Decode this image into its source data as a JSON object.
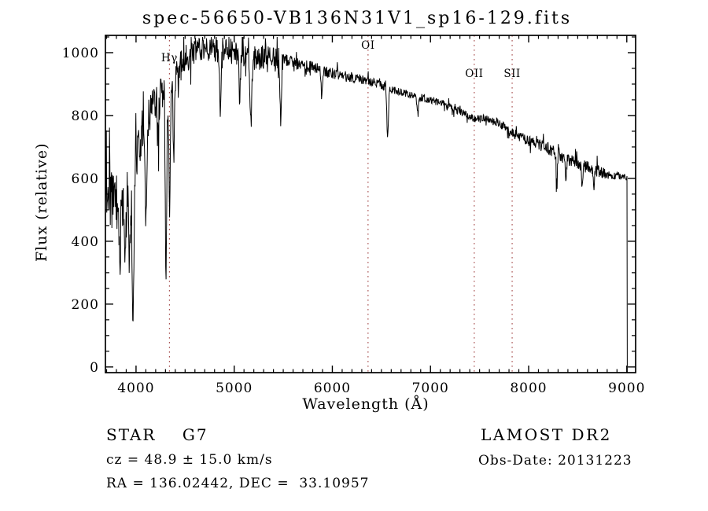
{
  "title": "spec-56650-VB136N31V1_sp16-129.fits",
  "annotations": {
    "class_line": "STAR    G7",
    "survey": "LAMOST DR2",
    "cz_line": "cz = 48.9 ± 15.0 km/s",
    "obs_date_line": "Obs-Date: 20131223",
    "ra_dec_line": "RA = 136.02442, DEC =  33.10957"
  },
  "colors": {
    "background": "#ffffff",
    "spectrum_line": "#000000",
    "axis": "#000000",
    "text": "#000000",
    "marker_line": "#993333"
  },
  "chart_data": {
    "type": "line",
    "title": "spec-56650-VB136N31V1_sp16-129.fits",
    "xlabel": "Wavelength (Å)",
    "ylabel": "Flux (relative)",
    "xlim": [
      3688,
      9090
    ],
    "ylim": [
      -18,
      1055
    ],
    "grid": false,
    "x_major_ticks": [
      4000,
      5000,
      6000,
      7000,
      8000,
      9000
    ],
    "x_tick_labels": [
      "4000",
      "5000",
      "6000",
      "7000",
      "8000",
      "9000"
    ],
    "x_minor_step": 100,
    "y_major_ticks": [
      0,
      200,
      400,
      600,
      800,
      1000
    ],
    "y_tick_labels": [
      "0",
      "200",
      "400",
      "600",
      "800",
      "1000"
    ],
    "y_minor_step": 50,
    "line_markers": [
      {
        "label": "Hγ",
        "wavelength": 4340,
        "label_y": 78
      },
      {
        "label": "OI",
        "wavelength": 6364,
        "label_y": 62
      },
      {
        "label": "OII",
        "wavelength": 7446,
        "label_y": 98
      },
      {
        "label": "SII",
        "wavelength": 7832,
        "label_y": 98
      }
    ],
    "series": [
      {
        "name": "spectrum",
        "x_start": 3690,
        "x_end": 9005,
        "step": 4,
        "seed": 136129,
        "clip_max": 1050,
        "end_drop_to": -18,
        "continuum": [
          [
            3690,
            545
          ],
          [
            3780,
            525
          ],
          [
            3850,
            530
          ],
          [
            3920,
            575
          ],
          [
            3960,
            615
          ],
          [
            4000,
            660
          ],
          [
            4060,
            735
          ],
          [
            4120,
            795
          ],
          [
            4200,
            845
          ],
          [
            4280,
            885
          ],
          [
            4360,
            915
          ],
          [
            4440,
            950
          ],
          [
            4520,
            985
          ],
          [
            4620,
            1005
          ],
          [
            4750,
            1012
          ],
          [
            4900,
            1012
          ],
          [
            5000,
            1002
          ],
          [
            5100,
            992
          ],
          [
            5250,
            988
          ],
          [
            5350,
            985
          ],
          [
            5450,
            978
          ],
          [
            5550,
            972
          ],
          [
            5700,
            960
          ],
          [
            5850,
            950
          ],
          [
            5950,
            938
          ],
          [
            6100,
            928
          ],
          [
            6250,
            918
          ],
          [
            6400,
            908
          ],
          [
            6500,
            895
          ],
          [
            6600,
            882
          ],
          [
            6750,
            870
          ],
          [
            6900,
            858
          ],
          [
            7050,
            845
          ],
          [
            7200,
            828
          ],
          [
            7350,
            805
          ],
          [
            7450,
            788
          ],
          [
            7580,
            793
          ],
          [
            7700,
            775
          ],
          [
            7800,
            750
          ],
          [
            7900,
            735
          ],
          [
            8000,
            718
          ],
          [
            8100,
            706
          ],
          [
            8200,
            693
          ],
          [
            8300,
            677
          ],
          [
            8400,
            661
          ],
          [
            8500,
            647
          ],
          [
            8600,
            635
          ],
          [
            8700,
            624
          ],
          [
            8800,
            615
          ],
          [
            8900,
            609
          ],
          [
            9005,
            604
          ]
        ],
        "noise_amp": [
          [
            3690,
            95
          ],
          [
            3950,
            88
          ],
          [
            4010,
            62
          ],
          [
            4150,
            58
          ],
          [
            4350,
            52
          ],
          [
            4500,
            46
          ],
          [
            5350,
            42
          ],
          [
            5550,
            21
          ],
          [
            6200,
            15
          ],
          [
            6800,
            12
          ],
          [
            7400,
            12
          ],
          [
            7800,
            15
          ],
          [
            8150,
            20
          ],
          [
            8700,
            20
          ],
          [
            9005,
            9
          ]
        ],
        "absorption_lines": [
          {
            "center": 3835,
            "depth": 170,
            "width": 9
          },
          {
            "center": 3890,
            "depth": 190,
            "width": 9
          },
          {
            "center": 3933,
            "depth": 240,
            "width": 10
          },
          {
            "center": 3969,
            "depth": 420,
            "width": 9
          },
          {
            "center": 4102,
            "depth": 330,
            "width": 9
          },
          {
            "center": 4227,
            "depth": 130,
            "width": 7
          },
          {
            "center": 4305,
            "depth": 660,
            "width": 7
          },
          {
            "center": 4341,
            "depth": 400,
            "width": 9
          },
          {
            "center": 4383,
            "depth": 260,
            "width": 7
          },
          {
            "center": 4861,
            "depth": 182,
            "width": 8
          },
          {
            "center": 5058,
            "depth": 130,
            "width": 7
          },
          {
            "center": 5170,
            "depth": 215,
            "width": 9
          },
          {
            "center": 5474,
            "depth": 200,
            "width": 7
          },
          {
            "center": 5893,
            "depth": 65,
            "width": 8
          },
          {
            "center": 6563,
            "depth": 160,
            "width": 8
          },
          {
            "center": 6870,
            "depth": 45,
            "width": 10
          },
          {
            "center": 8285,
            "depth": 95,
            "width": 6
          },
          {
            "center": 8380,
            "depth": 70,
            "width": 6
          },
          {
            "center": 8545,
            "depth": 65,
            "width": 6
          },
          {
            "center": 8665,
            "depth": 60,
            "width": 6
          }
        ]
      }
    ]
  }
}
